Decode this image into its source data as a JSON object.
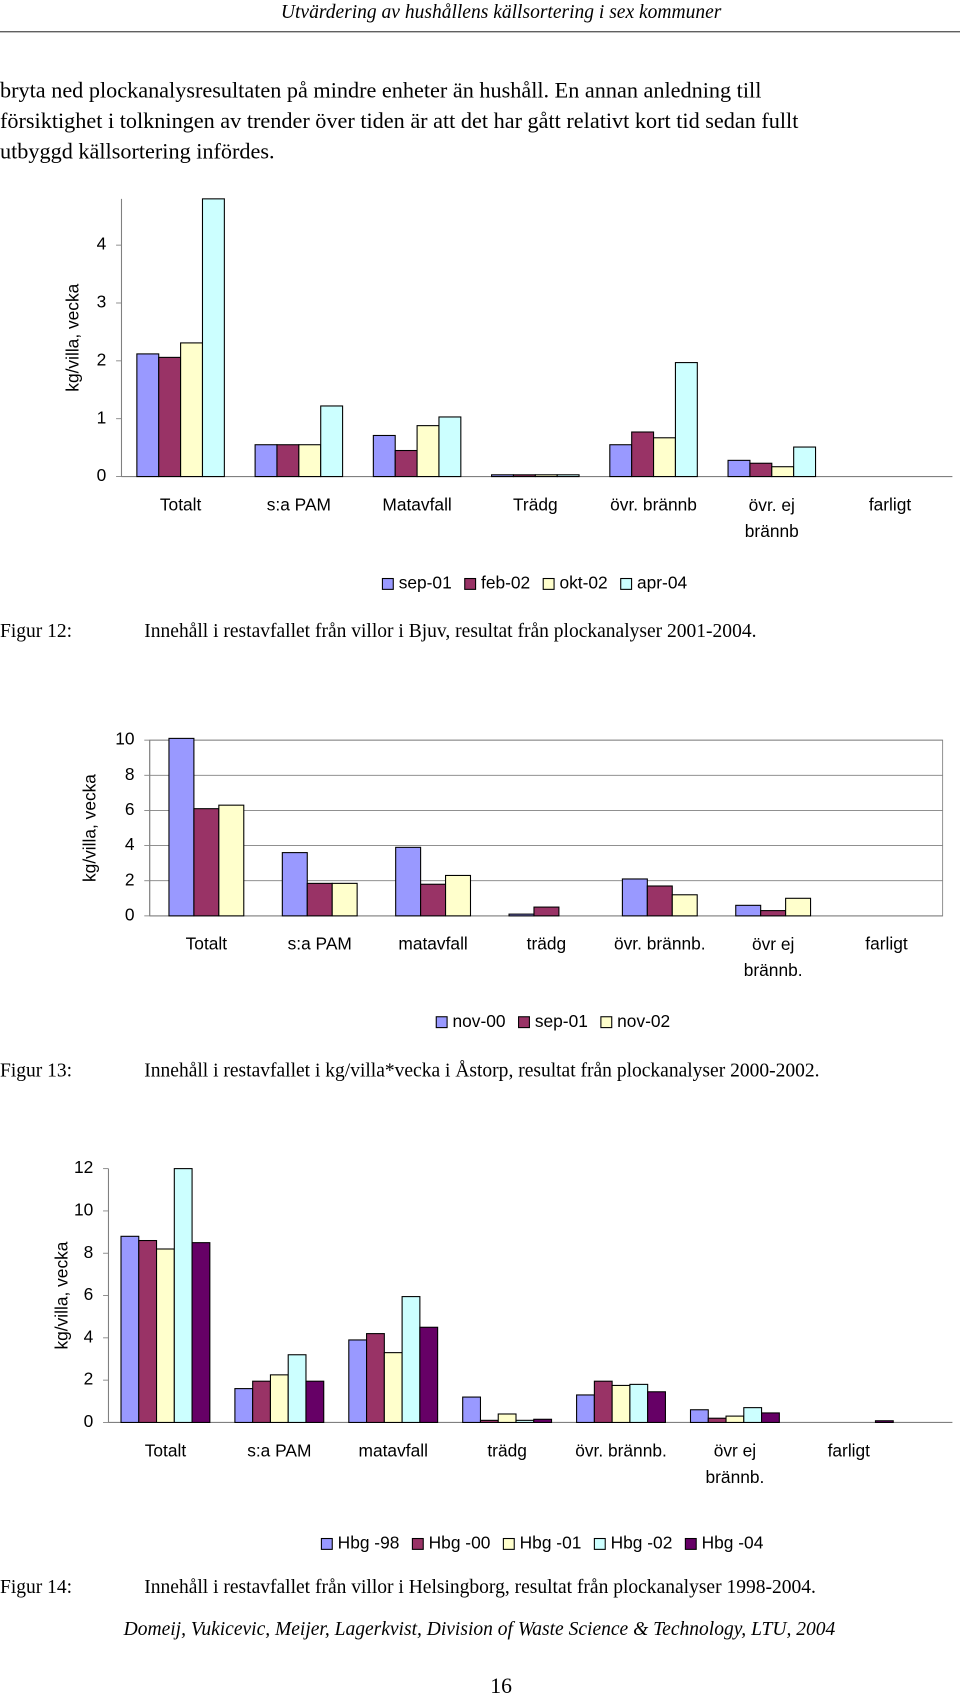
{
  "header": "Utvärdering av hushållens källsortering i sex kommuner",
  "paragraph": [
    "bryta ned plockanalysresultaten på mindre enheter än hushåll.  En annan anledning till",
    "försiktighet i tolkningen av trender över tiden är att det har gått relativt kort tid sedan fullt",
    "utbyggd källsortering infördes."
  ],
  "chart_data": [
    {
      "type": "bar",
      "ylabel": "kg/villa, vecka",
      "categories": [
        "Totalt",
        "s:a PAM",
        "Matavfall",
        "Trädg",
        "övr. brännb",
        "övr. ej brännb",
        "farligt"
      ],
      "series": [
        {
          "name": "sep-01",
          "color": "#9999ff",
          "values": [
            2.12,
            0.55,
            0.71,
            0.03,
            0.55,
            0.28,
            0
          ]
        },
        {
          "name": "feb-02",
          "color": "#993366",
          "values": [
            2.06,
            0.55,
            0.45,
            0.03,
            0.77,
            0.23,
            0
          ]
        },
        {
          "name": "okt-02",
          "color": "#ffffcc",
          "values": [
            2.31,
            0.55,
            0.88,
            0.03,
            0.67,
            0.17,
            0
          ]
        },
        {
          "name": "apr-04",
          "color": "#ccffff",
          "values": [
            4.8,
            1.22,
            1.03,
            0.03,
            1.97,
            0.51,
            0
          ]
        }
      ],
      "ylim": [
        0,
        4.8
      ],
      "yticks": [
        0,
        1,
        2,
        3,
        4
      ],
      "grid": false,
      "caption_label": "Figur 12:",
      "caption": "Innehåll i restavfallet från villor i Bjuv, resultat från plockanalyser 2001-2004."
    },
    {
      "type": "bar",
      "ylabel": "kg/villa, vecka",
      "categories": [
        "Totalt",
        "s:a PAM",
        "matavfall",
        "trädg",
        "övr. brännb.",
        "övr ej brännb.",
        "farligt"
      ],
      "series": [
        {
          "name": "nov-00",
          "color": "#9999ff",
          "values": [
            10.1,
            3.6,
            3.9,
            0.1,
            2.1,
            0.6,
            0
          ]
        },
        {
          "name": "sep-01",
          "color": "#993366",
          "values": [
            6.1,
            1.85,
            1.8,
            0.5,
            1.7,
            0.3,
            0
          ]
        },
        {
          "name": "nov-02",
          "color": "#ffffcc",
          "values": [
            6.3,
            1.85,
            2.3,
            0,
            1.2,
            1.0,
            0
          ]
        }
      ],
      "ylim": [
        0,
        10
      ],
      "yticks": [
        0,
        2,
        4,
        6,
        8,
        10
      ],
      "grid": true,
      "caption_label": "Figur 13:",
      "caption": "Innehåll i restavfallet i kg/villa*vecka i Åstorp, resultat från plockanalyser 2000-2002."
    },
    {
      "type": "bar",
      "ylabel": "kg/villa, vecka",
      "categories": [
        "Totalt",
        "s:a PAM",
        "matavfall",
        "trädg",
        "övr. brännb.",
        "övr ej brännb.",
        "farligt"
      ],
      "series": [
        {
          "name": "Hbg -98",
          "color": "#9999ff",
          "values": [
            8.8,
            1.6,
            3.9,
            1.2,
            1.3,
            0.6,
            0
          ]
        },
        {
          "name": "Hbg -00",
          "color": "#993366",
          "values": [
            8.6,
            1.95,
            4.2,
            0.1,
            1.95,
            0.2,
            0
          ]
        },
        {
          "name": "Hbg -01",
          "color": "#ffffcc",
          "values": [
            8.2,
            2.25,
            3.3,
            0.4,
            1.75,
            0.3,
            0
          ]
        },
        {
          "name": "Hbg -02",
          "color": "#ccffff",
          "values": [
            12.0,
            3.2,
            5.95,
            0.1,
            1.8,
            0.7,
            0
          ]
        },
        {
          "name": "Hbg -04",
          "color": "#660066",
          "values": [
            8.5,
            1.95,
            4.5,
            0.15,
            1.45,
            0.45,
            0.08
          ]
        }
      ],
      "ylim": [
        0,
        12
      ],
      "yticks": [
        0,
        2,
        4,
        6,
        8,
        10,
        12
      ],
      "grid": false,
      "caption_label": "Figur 14:",
      "caption": "Innehåll i restavfallet från villor i Helsingborg, resultat från plockanalyser 1998-2004."
    }
  ],
  "footer": "Domeij, Vukicevic, Meijer, Lagerkvist, Division of Waste Science & Technology, LTU, 2004",
  "page_number": "16"
}
